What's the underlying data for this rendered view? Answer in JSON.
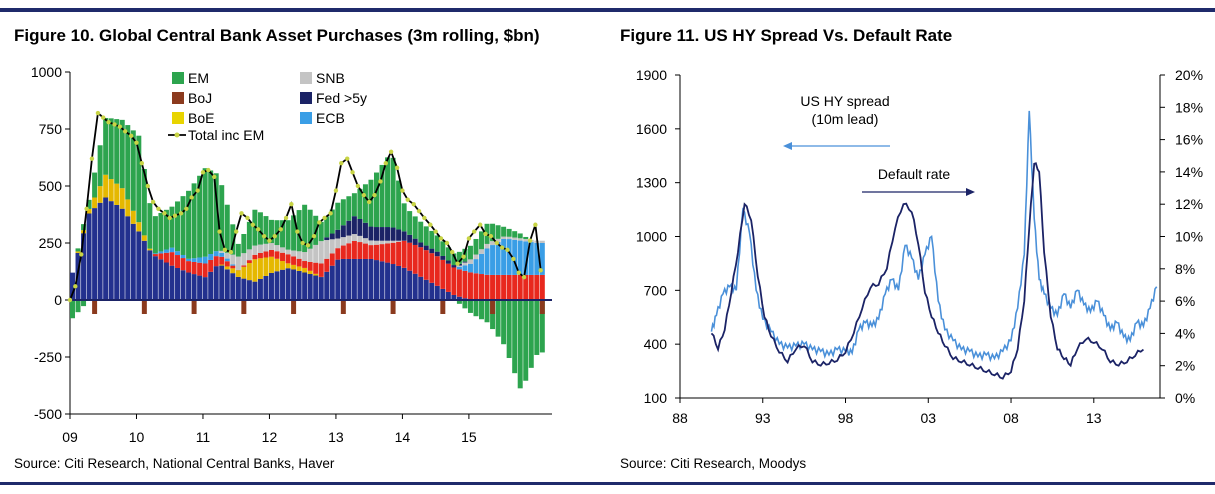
{
  "figures": [
    {
      "title": "Figure 10. Global Central Bank Asset Purchases (3m rolling, $bn)",
      "source": "Source: Citi Research, National Central Banks, Haver"
    },
    {
      "title": "Figure 11. US HY Spread Vs. Default Rate",
      "source": "Source: Citi Research, Moodys"
    }
  ],
  "colors": {
    "EM": "#2da44e",
    "SNB": "#c4c4c4",
    "BoJ": "#8b3a1e",
    "Fed >5y": "#1b2366",
    "BoE": "#e8d400",
    "ECB": "#3a9ee6",
    "Fed": "#23318e",
    "BoE2": "#e5b800",
    "red": "#e8281e",
    "total": "#000000",
    "marker": "#c8d445",
    "spread": "#4a90d9",
    "default": "#1b2366",
    "rule": "#1f2a6b"
  },
  "chart_data": [
    {
      "type": "bar",
      "title": "Figure 10. Global Central Bank Asset Purchases (3m rolling, $bn)",
      "stacked": true,
      "ylim": [
        -500,
        1000
      ],
      "yticks": [
        "1000",
        "750",
        "500",
        "250",
        "0",
        "-250",
        "-500"
      ],
      "yticks_values": [
        1000,
        750,
        500,
        250,
        0,
        -250,
        -500
      ],
      "xlim": [
        2009.0,
        2016.25
      ],
      "xticks": [
        "09",
        "10",
        "11",
        "12",
        "13",
        "14",
        "15"
      ],
      "xticks_values": [
        2009,
        2010,
        2011,
        2012,
        2013,
        2014,
        2015
      ],
      "legend": [
        "EM",
        "SNB",
        "BoJ",
        "Fed >5y",
        "BoE",
        "ECB",
        "Total inc EM"
      ],
      "legend_position": "top-left",
      "series_keys": [
        "Fed",
        "BoE",
        "BoJ",
        "ECB",
        "SNB",
        "Fed >5y",
        "EM"
      ],
      "segments": [
        [
          2009.0,
          120,
          0,
          0,
          0,
          0,
          0,
          0,
          -80
        ],
        [
          2009.25,
          380,
          20,
          0,
          0,
          0,
          0,
          40,
          0
        ],
        [
          2009.5,
          450,
          100,
          0,
          0,
          0,
          0,
          250,
          0
        ],
        [
          2009.75,
          400,
          90,
          0,
          0,
          0,
          0,
          300,
          0
        ],
        [
          2010.0,
          300,
          40,
          0,
          0,
          0,
          0,
          380,
          0
        ],
        [
          2010.2,
          200,
          0,
          0,
          0,
          0,
          0,
          160,
          0
        ],
        [
          2010.5,
          150,
          0,
          60,
          20,
          0,
          0,
          180,
          0
        ],
        [
          2010.75,
          120,
          0,
          50,
          10,
          0,
          0,
          300,
          0
        ],
        [
          2011.0,
          100,
          0,
          60,
          30,
          0,
          0,
          390,
          0
        ],
        [
          2011.2,
          160,
          0,
          40,
          20,
          0,
          0,
          330,
          0
        ],
        [
          2011.5,
          100,
          30,
          0,
          0,
          60,
          0,
          50,
          0
        ],
        [
          2011.75,
          80,
          100,
          20,
          0,
          40,
          0,
          160,
          0
        ],
        [
          2012.0,
          120,
          70,
          30,
          0,
          30,
          0,
          100,
          0
        ],
        [
          2012.25,
          140,
          20,
          40,
          0,
          20,
          0,
          130,
          0
        ],
        [
          2012.5,
          120,
          20,
          30,
          0,
          40,
          0,
          210,
          0
        ],
        [
          2012.75,
          100,
          0,
          60,
          0,
          100,
          0,
          80,
          0
        ],
        [
          2013.0,
          180,
          0,
          50,
          0,
          40,
          40,
          120,
          0
        ],
        [
          2013.25,
          180,
          0,
          80,
          0,
          30,
          80,
          100,
          0
        ],
        [
          2013.5,
          180,
          0,
          60,
          0,
          20,
          60,
          210,
          0
        ],
        [
          2013.8,
          160,
          0,
          90,
          0,
          10,
          60,
          330,
          0
        ],
        [
          2014.0,
          140,
          0,
          120,
          0,
          0,
          40,
          110,
          0
        ],
        [
          2014.25,
          100,
          0,
          130,
          0,
          0,
          20,
          90,
          0
        ],
        [
          2014.5,
          60,
          0,
          130,
          0,
          0,
          20,
          70,
          0
        ],
        [
          2014.75,
          20,
          0,
          120,
          0,
          0,
          10,
          50,
          0
        ],
        [
          2015.0,
          0,
          0,
          120,
          40,
          20,
          0,
          60,
          -60
        ],
        [
          2015.25,
          0,
          0,
          110,
          120,
          20,
          0,
          90,
          -100
        ],
        [
          2015.5,
          0,
          0,
          110,
          160,
          10,
          0,
          40,
          -200
        ],
        [
          2015.75,
          0,
          0,
          110,
          150,
          10,
          0,
          20,
          -400
        ],
        [
          2016.0,
          0,
          0,
          110,
          140,
          10,
          0,
          -20,
          -230
        ]
      ],
      "x": [
        2009.0,
        2009.08,
        2009.17,
        2009.25,
        2009.33,
        2009.42,
        2009.5,
        2009.58,
        2009.67,
        2009.75,
        2009.83,
        2009.92,
        2010.0,
        2010.08,
        2010.17,
        2010.25,
        2010.33,
        2010.42,
        2010.5,
        2010.58,
        2010.67,
        2010.75,
        2010.83,
        2010.92,
        2011.0,
        2011.08,
        2011.17,
        2011.25,
        2011.33,
        2011.42,
        2011.5,
        2011.58,
        2011.67,
        2011.75,
        2011.83,
        2011.92,
        2012.0,
        2012.08,
        2012.17,
        2012.25,
        2012.33,
        2012.42,
        2012.5,
        2012.58,
        2012.67,
        2012.75,
        2012.83,
        2012.92,
        2013.0,
        2013.08,
        2013.17,
        2013.25,
        2013.33,
        2013.42,
        2013.5,
        2013.58,
        2013.67,
        2013.75,
        2013.83,
        2013.92,
        2014.0,
        2014.08,
        2014.17,
        2014.25,
        2014.33,
        2014.42,
        2014.5,
        2014.58,
        2014.67,
        2014.75,
        2014.83,
        2014.92,
        2015.0,
        2015.08,
        2015.17,
        2015.25,
        2015.33,
        2015.42,
        2015.5,
        2015.58,
        2015.67,
        2015.75,
        2015.83,
        2015.92,
        2016.0,
        2016.08
      ],
      "total": [
        0,
        60,
        200,
        400,
        620,
        820,
        800,
        780,
        770,
        760,
        740,
        720,
        690,
        600,
        500,
        430,
        400,
        380,
        360,
        370,
        380,
        400,
        450,
        480,
        560,
        570,
        540,
        300,
        220,
        210,
        300,
        380,
        360,
        330,
        310,
        280,
        260,
        280,
        310,
        360,
        420,
        300,
        250,
        240,
        280,
        340,
        360,
        380,
        480,
        600,
        620,
        560,
        500,
        460,
        430,
        460,
        520,
        600,
        650,
        580,
        480,
        440,
        420,
        390,
        360,
        330,
        300,
        270,
        250,
        210,
        160,
        190,
        270,
        300,
        330,
        290,
        280,
        250,
        230,
        220,
        180,
        120,
        100,
        260,
        330,
        130
      ]
    },
    {
      "type": "line",
      "title": "Figure 11. US HY Spread Vs. Default Rate",
      "xlim": [
        1988,
        2017
      ],
      "xticks": [
        "88",
        "93",
        "98",
        "03",
        "08",
        "13"
      ],
      "xticks_values": [
        1988,
        1993,
        1998,
        2003,
        2008,
        2013
      ],
      "ylim_left": [
        100,
        1900
      ],
      "yticks_left": [
        "1900",
        "1600",
        "1300",
        "1000",
        "700",
        "400",
        "100"
      ],
      "yticks_left_values": [
        1900,
        1600,
        1300,
        1000,
        700,
        400,
        100
      ],
      "ylim_right": [
        0,
        20
      ],
      "yticks_right": [
        "20%",
        "18%",
        "16%",
        "14%",
        "12%",
        "10%",
        "8%",
        "6%",
        "4%",
        "2%",
        "0%"
      ],
      "yticks_right_values": [
        20,
        18,
        16,
        14,
        12,
        10,
        8,
        6,
        4,
        2,
        0
      ],
      "annotations": {
        "spread_line1": "US HY spread",
        "spread_line2": "(10m lead)",
        "default": "Default rate"
      },
      "series": [
        {
          "name": "US HY spread (10m lead)",
          "axis": "left",
          "x": [
            1989.9,
            1990.2,
            1990.6,
            1991.0,
            1991.4,
            1991.8,
            1992.2,
            1992.6,
            1993.0,
            1993.5,
            1994.0,
            1994.5,
            1995.0,
            1995.5,
            1996.0,
            1996.5,
            1997.0,
            1997.5,
            1998.0,
            1998.4,
            1998.8,
            1999.2,
            1999.6,
            2000.0,
            2000.4,
            2000.8,
            2001.2,
            2001.6,
            2002.0,
            2002.4,
            2002.8,
            2003.2,
            2003.6,
            2004.0,
            2004.5,
            2005.0,
            2005.5,
            2006.0,
            2006.5,
            2007.0,
            2007.5,
            2008.0,
            2008.4,
            2008.8,
            2009.1,
            2009.4,
            2009.7,
            2010.0,
            2010.4,
            2010.8,
            2011.2,
            2011.6,
            2012.0,
            2012.4,
            2012.8,
            2013.2,
            2013.6,
            2014.0,
            2014.4,
            2014.8,
            2015.2,
            2015.6,
            2016.0,
            2016.4,
            2016.8
          ],
          "values": [
            470,
            560,
            680,
            720,
            700,
            1150,
            1020,
            700,
            540,
            470,
            400,
            380,
            390,
            400,
            370,
            360,
            340,
            370,
            360,
            350,
            480,
            520,
            500,
            540,
            680,
            760,
            700,
            950,
            880,
            760,
            900,
            1000,
            640,
            480,
            420,
            370,
            360,
            330,
            340,
            320,
            360,
            420,
            600,
            900,
            1700,
            1100,
            760,
            680,
            600,
            560,
            680,
            600,
            700,
            620,
            580,
            640,
            560,
            480,
            520,
            440,
            420,
            520,
            500,
            600,
            720
          ]
        },
        {
          "name": "Default rate",
          "axis": "right",
          "x": [
            1989.9,
            1990.3,
            1990.7,
            1991.1,
            1991.5,
            1991.9,
            1992.3,
            1992.7,
            1993.1,
            1993.5,
            1994.0,
            1994.5,
            1995.0,
            1995.5,
            1996.0,
            1996.5,
            1997.0,
            1997.5,
            1998.0,
            1998.5,
            1999.0,
            1999.5,
            2000.0,
            2000.5,
            2001.0,
            2001.5,
            2002.0,
            2002.4,
            2002.8,
            2003.2,
            2003.6,
            2004.0,
            2004.5,
            2005.0,
            2005.5,
            2006.0,
            2006.5,
            2007.0,
            2007.5,
            2008.0,
            2008.4,
            2008.8,
            2009.1,
            2009.4,
            2009.7,
            2010.0,
            2010.4,
            2010.8,
            2011.2,
            2011.6,
            2012.0,
            2012.5,
            2013.0,
            2013.5,
            2014.0,
            2014.5,
            2015.0,
            2015.5,
            2016.0
          ],
          "values": [
            4.0,
            3.0,
            4.2,
            6.5,
            9.0,
            12.0,
            11.0,
            7.5,
            5.0,
            3.8,
            2.8,
            2.2,
            3.0,
            3.2,
            2.2,
            2.0,
            2.1,
            2.3,
            2.8,
            4.0,
            5.5,
            6.8,
            7.0,
            8.0,
            10.5,
            12.0,
            11.5,
            9.5,
            6.5,
            5.0,
            4.0,
            3.2,
            2.4,
            2.2,
            2.0,
            1.8,
            1.6,
            1.4,
            1.2,
            1.6,
            3.0,
            6.0,
            10.5,
            14.5,
            14.0,
            9.0,
            5.0,
            3.0,
            2.4,
            2.0,
            3.0,
            3.6,
            3.4,
            3.0,
            2.2,
            2.0,
            2.2,
            2.6,
            3.0
          ]
        }
      ]
    }
  ]
}
